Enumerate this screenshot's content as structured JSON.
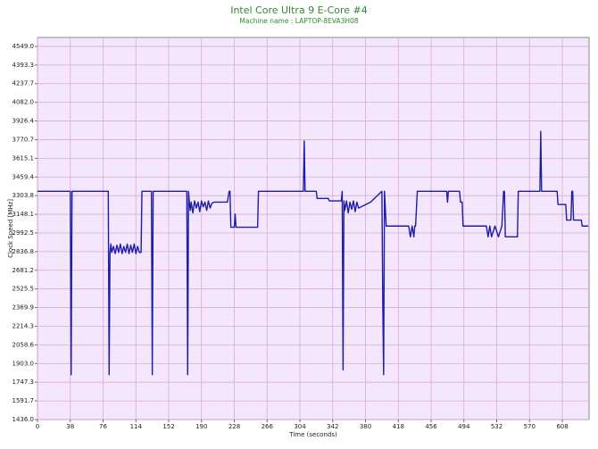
{
  "chart_data": {
    "type": "line",
    "title": "Intel Core Ultra 9 E-Core #4",
    "subtitle": "Machine name : LAPTOP-8EVA3H08",
    "x_label": "Time (seconds)",
    "y_label": "Clock Speed [MHz]",
    "grid": true,
    "xlim": [
      0,
      639
    ],
    "xticks": [
      0,
      38,
      76,
      114,
      152,
      190,
      228,
      266,
      304,
      342,
      380,
      418,
      456,
      494,
      532,
      570,
      608
    ],
    "ylim": [
      1436,
      4623
    ],
    "yticks": [
      {
        "value": 1436,
        "label": "1436.0"
      },
      1591.7,
      1747.3,
      {
        "value": 1903,
        "label": "1903.0"
      },
      2058.6,
      2214.3,
      2369.9,
      2525.5,
      2681.2,
      2836.8,
      2992.5,
      3148.1,
      3303.8,
      3459.4,
      3615.1,
      3770.7,
      3926.4,
      {
        "value": 4082,
        "label": "4082.0"
      },
      4237.7,
      4393.3,
      {
        "value": 4549,
        "label": "4549.0"
      }
    ],
    "series": [
      {
        "name": "Clock Speed",
        "color": "#1c1ca8",
        "x": [
          0,
          38,
          39,
          40,
          82,
          83,
          84,
          85,
          86,
          88,
          90,
          92,
          94,
          96,
          98,
          100,
          102,
          104,
          106,
          108,
          110,
          112,
          114,
          116,
          118,
          120,
          121,
          132,
          133,
          134,
          173,
          174,
          175,
          176,
          177,
          178,
          180,
          182,
          184,
          186,
          188,
          190,
          192,
          194,
          196,
          198,
          200,
          202,
          205,
          220,
          222,
          223,
          224,
          228,
          229,
          230,
          255,
          256,
          308,
          309,
          310,
          323,
          324,
          337,
          338,
          352,
          353,
          354,
          355,
          356,
          358,
          360,
          362,
          364,
          366,
          368,
          370,
          372,
          386,
          399,
          400,
          401,
          402,
          404,
          430,
          432,
          434,
          436,
          437,
          438,
          440,
          474,
          475,
          476,
          489,
          490,
          492,
          493,
          520,
          522,
          524,
          526,
          530,
          534,
          538,
          540,
          541,
          542,
          556,
          557,
          582,
          583,
          584,
          602,
          603,
          612,
          613,
          618,
          619,
          620,
          621,
          630,
          631,
          638
        ],
        "values": [
          3340,
          3340,
          1810,
          3340,
          3340,
          1810,
          2830,
          2900,
          2830,
          2880,
          2820,
          2890,
          2830,
          2900,
          2820,
          2880,
          2830,
          2900,
          2820,
          2890,
          2830,
          2900,
          2820,
          2880,
          2830,
          2830,
          3340,
          3340,
          1810,
          3340,
          3340,
          1810,
          3340,
          3240,
          3180,
          3250,
          3160,
          3260,
          3200,
          3250,
          3170,
          3260,
          3210,
          3250,
          3180,
          3260,
          3200,
          3240,
          3250,
          3250,
          3340,
          3340,
          3040,
          3040,
          3150,
          3040,
          3040,
          3340,
          3340,
          3760,
          3340,
          3340,
          3280,
          3280,
          3260,
          3260,
          3340,
          1850,
          3260,
          3180,
          3260,
          3160,
          3250,
          3190,
          3260,
          3170,
          3250,
          3200,
          3250,
          3340,
          2420,
          1810,
          3340,
          3050,
          3050,
          2960,
          3050,
          2960,
          3050,
          3050,
          3340,
          3340,
          3250,
          3340,
          3340,
          3250,
          3250,
          3050,
          3050,
          2960,
          3050,
          2960,
          3050,
          2960,
          3050,
          3340,
          3340,
          2960,
          2960,
          3340,
          3340,
          3840,
          3340,
          3340,
          3230,
          3230,
          3100,
          3100,
          3340,
          3340,
          3100,
          3100,
          3050,
          3050
        ]
      }
    ]
  }
}
